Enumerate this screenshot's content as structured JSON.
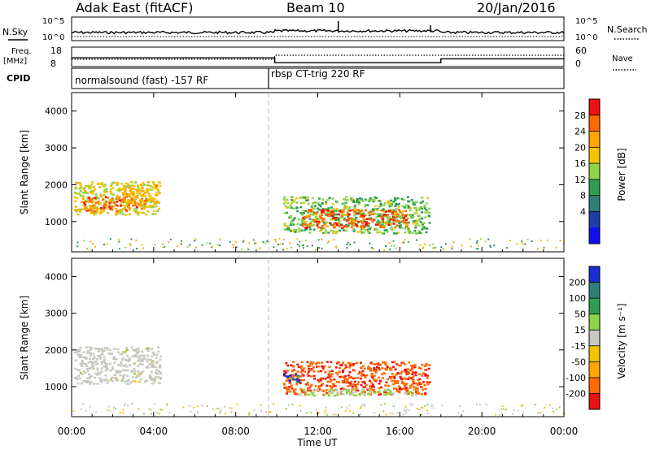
{
  "header": {
    "radar": "Adak East (fitACF)",
    "beam": "Beam 10",
    "date": "20/Jan/2016"
  },
  "strips": {
    "nsky_label": "N.Sky",
    "nsearch_label": "N.Search",
    "nsky_ticks": [
      "10^5",
      "10^0"
    ],
    "nsearch_ticks": [
      "10^5",
      "10^0"
    ],
    "freq_label": "Freq.",
    "freq_unit": "[MHz]",
    "freq_ticks": [
      "18",
      "8"
    ],
    "nave_label": "Nave",
    "nave_ticks": [
      "60",
      "0"
    ],
    "cpid_label": "CPID",
    "cpid_segments": [
      {
        "label": "normalsound (fast) -157 RF",
        "start_hour": 0,
        "end_hour": 9.6
      },
      {
        "label": "rbsp CT-trig 220 RF",
        "start_hour": 9.6,
        "end_hour": 24
      }
    ],
    "freq_steps": [
      {
        "start_hour": 0,
        "end_hour": 9.9,
        "freq_mhz": 12.5
      },
      {
        "start_hour": 9.9,
        "end_hour": 18.0,
        "freq_mhz": 10.0
      },
      {
        "start_hour": 18.0,
        "end_hour": 24,
        "freq_mhz": 12.0
      }
    ]
  },
  "panels": {
    "ylabel": "Slant Range [km]",
    "yticks": [
      "1000",
      "2000",
      "3000",
      "4000"
    ],
    "xticks": [
      "00:00",
      "04:00",
      "08:00",
      "12:00",
      "16:00",
      "20:00",
      "00:00"
    ],
    "xlabel": "Time UT",
    "power": {
      "cbar_label": "Power [dB]",
      "cbar_ticks": [
        "28",
        "24",
        "20",
        "16",
        "12",
        "8",
        "4"
      ],
      "cbar_colors": [
        "#ee1111",
        "#ff6a00",
        "#ffa500",
        "#f5c400",
        "#8ed44a",
        "#2e9e52",
        "#2f7f78",
        "#1f3ea8",
        "#1010ee"
      ]
    },
    "velocity": {
      "cbar_label": "Velocity [m s⁻¹]",
      "cbar_ticks": [
        "200",
        "100",
        "50",
        "15",
        "-15",
        "-50",
        "-100",
        "-200"
      ],
      "cbar_colors": [
        "#1a2fd0",
        "#2f7f78",
        "#2e9e52",
        "#8ed44a",
        "#c8c8c0",
        "#f5c400",
        "#ffa500",
        "#ff6a00",
        "#ee1111"
      ]
    }
  },
  "chart_data": {
    "type": "heatmap",
    "x_range_hours": [
      0,
      24
    ],
    "y_range_km": [
      180,
      4500
    ],
    "cpid_change_hour": 9.6,
    "power_echoes": [
      {
        "t0": 0.1,
        "t1": 4.3,
        "r0": 1200,
        "r1": 2100,
        "power_db": 18
      },
      {
        "t0": 0.5,
        "t1": 3.4,
        "r0": 1300,
        "r1": 1700,
        "power_db": 26
      },
      {
        "t0": 2.4,
        "t1": 4.2,
        "r0": 1500,
        "r1": 2000,
        "power_db": 22
      },
      {
        "t0": 10.3,
        "t1": 17.4,
        "r0": 700,
        "r1": 1700,
        "power_db": 14
      },
      {
        "t0": 11.2,
        "t1": 16.3,
        "r0": 850,
        "r1": 1350,
        "power_db": 27
      }
    ],
    "velocity_echoes": [
      {
        "t0": 0.1,
        "t1": 4.3,
        "r0": 1100,
        "r1": 2100,
        "velocity_ms": 0
      },
      {
        "t0": 10.3,
        "t1": 17.4,
        "r0": 800,
        "r1": 1700,
        "velocity_ms": -180
      },
      {
        "t0": 10.3,
        "t1": 11.2,
        "r0": 1150,
        "r1": 1400,
        "velocity_ms": 200
      },
      {
        "t0": 11.0,
        "t1": 16.8,
        "r0": 780,
        "r1": 950,
        "velocity_ms": 40
      }
    ]
  }
}
